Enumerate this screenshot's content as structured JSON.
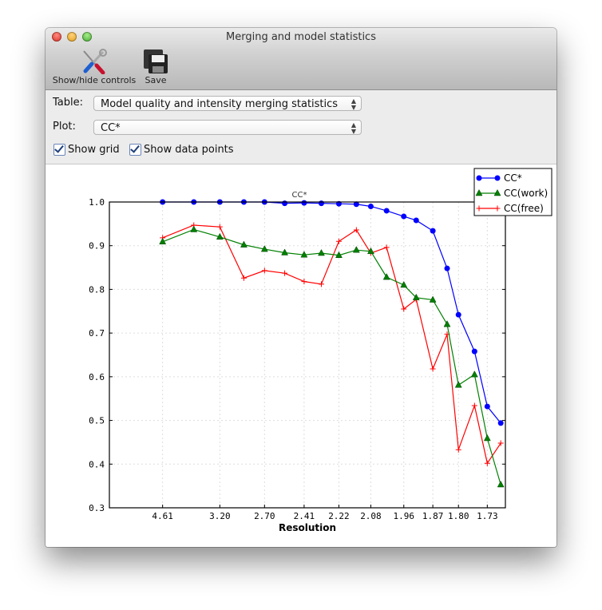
{
  "window": {
    "title": "Merging and model statistics"
  },
  "toolbar": {
    "show_hide_label": "Show/hide controls",
    "save_label": "Save"
  },
  "controls": {
    "table_label": "Table:",
    "table_value": "Model quality and intensity merging statistics",
    "plot_label": "Plot:",
    "plot_value": "CC*",
    "show_grid_label": "Show grid",
    "show_grid_checked": true,
    "show_points_label": "Show data points",
    "show_points_checked": true
  },
  "chart_data": {
    "type": "line",
    "title": "CC*",
    "xlabel": "Resolution",
    "ylabel": "",
    "x_scale": "1/d^2 (reciprocal square, labeled as resolution)",
    "xlim": [
      null,
      1.69
    ],
    "ylim": [
      0.3,
      1.0
    ],
    "grid": true,
    "legend_position": "top-right",
    "x_ticks": [
      4.61,
      3.2,
      2.7,
      2.41,
      2.22,
      2.08,
      1.96,
      1.87,
      1.8,
      1.73
    ],
    "x_tick_labels": [
      "4.61",
      "3.20",
      "2.70",
      "2.41",
      "2.22",
      "2.08",
      "1.96",
      "1.87",
      "1.80",
      "1.73"
    ],
    "y_ticks": [
      0.3,
      0.4,
      0.5,
      0.6,
      0.7,
      0.8,
      0.9,
      1.0
    ],
    "y_tick_labels": [
      "0.3",
      "0.4",
      "0.5",
      "0.6",
      "0.7",
      "0.8",
      "0.9",
      "1.0"
    ],
    "x": [
      4.61,
      3.66,
      3.2,
      2.9,
      2.7,
      2.54,
      2.41,
      2.31,
      2.22,
      2.14,
      2.08,
      2.02,
      1.96,
      1.92,
      1.87,
      1.83,
      1.8,
      1.76,
      1.73,
      1.7
    ],
    "series": [
      {
        "name": "CC*",
        "color": "#0000ff",
        "marker": "circle",
        "values": [
          1.0,
          1.0,
          1.0,
          1.0,
          1.0,
          0.997,
          0.998,
          0.997,
          0.996,
          0.995,
          0.99,
          0.98,
          0.967,
          0.958,
          0.934,
          0.848,
          0.742,
          0.658,
          0.532,
          0.494
        ]
      },
      {
        "name": "CC(work)",
        "color": "#008000",
        "marker": "triangle",
        "values": [
          0.909,
          0.937,
          0.92,
          0.902,
          0.892,
          0.884,
          0.879,
          0.883,
          0.878,
          0.89,
          0.887,
          0.828,
          0.81,
          0.781,
          0.776,
          0.72,
          0.581,
          0.605,
          0.459,
          0.353
        ]
      },
      {
        "name": "CC(free)",
        "color": "#ff0000",
        "marker": "plus",
        "values": [
          0.918,
          0.947,
          0.943,
          0.826,
          0.843,
          0.837,
          0.818,
          0.812,
          0.91,
          0.936,
          0.883,
          0.896,
          0.755,
          0.777,
          0.618,
          0.697,
          0.433,
          0.534,
          0.402,
          0.448
        ]
      }
    ]
  }
}
